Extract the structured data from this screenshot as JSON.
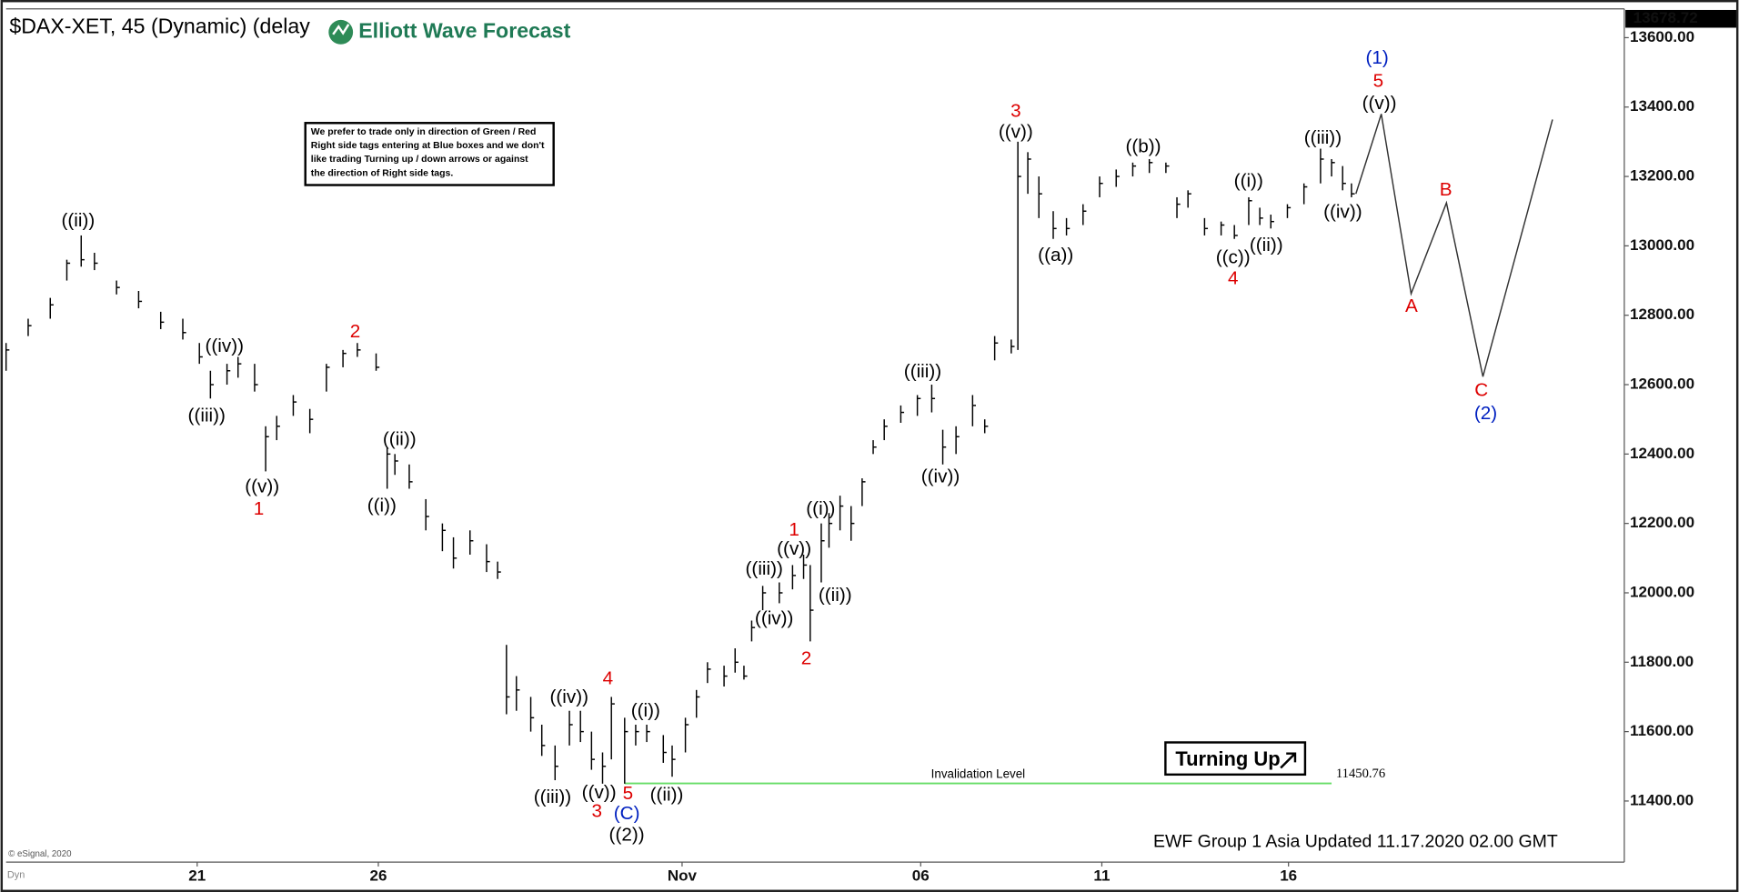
{
  "chart_data": {
    "type": "hlc",
    "title": "$DAX-XET, 45 (Dynamic) (delay",
    "logo": "Elliott Wave Forecast",
    "note": [
      "We prefer to trade only in direction of Green / Red",
      "Right side tags entering at Blue boxes and we don't",
      "like trading Turning up / down arrows or against",
      "the direction of Right side tags."
    ],
    "badge": "Turning Up",
    "footer": "EWF Group 1 Asia Updated 11.17.2020 02.00 GMT",
    "source": "© eSignal, 2020",
    "corner_label": "Dyn",
    "last_price": 13678.72,
    "color": "#000000",
    "x": [
      0,
      2,
      4,
      5.5,
      6.8,
      8,
      10,
      12,
      14,
      16,
      17.5,
      18.5,
      20,
      21,
      22.5,
      23.5,
      24.5,
      26,
      27.5,
      29,
      30.5,
      31.8,
      33.5,
      34.5,
      35.2,
      36.5,
      38,
      39.5,
      40.5,
      42,
      43.5,
      44.5,
      45.3,
      46.2,
      47.5,
      48.5,
      49.7,
      51,
      52,
      53,
      54,
      54.8,
      56,
      57,
      58,
      59.5,
      60.3,
      61.5,
      62.5,
      63.5,
      65,
      66,
      66.8,
      67.5,
      68.5,
      70,
      71.2,
      72.2,
      72.8,
      73.8,
      74.5,
      75.5,
      76.5,
      77.5,
      78.5,
      79.5,
      81,
      82.5,
      83.8,
      84.8,
      86,
      87.5,
      88.6,
      89.5,
      91,
      91.6,
      92.5,
      93.5,
      94.8,
      96,
      97.5,
      99,
      100.5,
      102,
      103.5,
      105,
      106,
      107,
      108.5,
      110,
      111.2,
      112.5,
      113.5,
      114.5,
      116,
      117.5,
      119,
      120,
      121,
      121.8
    ],
    "high": [
      12720,
      12790,
      12850,
      12960,
      13030,
      12980,
      12900,
      12870,
      12810,
      12790,
      12720,
      12640,
      12660,
      12680,
      12660,
      12480,
      12510,
      12570,
      12530,
      12660,
      12700,
      12720,
      12690,
      12420,
      12400,
      12370,
      12270,
      12200,
      12160,
      12180,
      12140,
      12090,
      11850,
      11760,
      11700,
      11620,
      11560,
      11660,
      11660,
      11600,
      11540,
      11700,
      11640,
      11620,
      11620,
      11590,
      11560,
      11640,
      11720,
      11800,
      11790,
      11840,
      11790,
      11920,
      12020,
      12030,
      12080,
      12110,
      12080,
      12200,
      12230,
      12280,
      12250,
      12330,
      12440,
      12500,
      12540,
      12570,
      12600,
      12470,
      12480,
      12570,
      12500,
      12740,
      12730,
      13300,
      13270,
      13200,
      13100,
      13080,
      13120,
      13200,
      13220,
      13240,
      13250,
      13240,
      13140,
      13160,
      13080,
      13070,
      13060,
      13140,
      13110,
      13090,
      13120,
      13180,
      13280,
      13250,
      13230,
      13180
    ],
    "low": [
      12640,
      12740,
      12790,
      12900,
      12940,
      12930,
      12860,
      12820,
      12760,
      12730,
      12660,
      12560,
      12600,
      12620,
      12580,
      12350,
      12440,
      12510,
      12460,
      12580,
      12650,
      12680,
      12640,
      12300,
      12340,
      12300,
      12180,
      12120,
      12070,
      12110,
      12060,
      12040,
      11650,
      11660,
      11600,
      11530,
      11460,
      11560,
      11570,
      11490,
      11450,
      11520,
      11450,
      11560,
      11570,
      11510,
      11470,
      11540,
      11640,
      11740,
      11730,
      11770,
      11750,
      11860,
      11950,
      11970,
      12010,
      12040,
      11860,
      12030,
      12130,
      12180,
      12150,
      12250,
      12400,
      12440,
      12490,
      12510,
      12520,
      12370,
      12400,
      12480,
      12460,
      12670,
      12690,
      12700,
      13150,
      13080,
      13020,
      13030,
      13060,
      13140,
      13170,
      13200,
      13210,
      13210,
      13080,
      13110,
      13030,
      13030,
      13020,
      13060,
      13060,
      13050,
      13080,
      13120,
      13180,
      13200,
      13160,
      13140
    ],
    "close": [
      12700,
      12770,
      12830,
      12950,
      12960,
      12950,
      12880,
      12840,
      12780,
      12750,
      12680,
      12600,
      12640,
      12660,
      12600,
      12450,
      12480,
      12550,
      12500,
      12650,
      12690,
      12700,
      12650,
      12400,
      12380,
      12320,
      12220,
      12180,
      12100,
      12150,
      12090,
      12060,
      11700,
      11720,
      11640,
      11560,
      11500,
      11620,
      11600,
      11520,
      11500,
      11680,
      11600,
      11600,
      11600,
      11540,
      11520,
      11620,
      11700,
      11780,
      11760,
      11800,
      11760,
      11900,
      12000,
      12000,
      12050,
      12080,
      11950,
      12150,
      12200,
      12250,
      12200,
      12320,
      12420,
      12480,
      12520,
      12560,
      12560,
      12420,
      12450,
      12540,
      12480,
      12720,
      12710,
      13200,
      13250,
      13150,
      13050,
      13050,
      13100,
      13180,
      13200,
      13230,
      13240,
      13230,
      13120,
      13150,
      13050,
      13060,
      13030,
      13130,
      13080,
      13070,
      13110,
      13170,
      13250,
      13240,
      13180,
      13150
    ],
    "projection": {
      "x": [
        122.2,
        124.5,
        127.2,
        130.4,
        133.7,
        140
      ],
      "values": [
        13150,
        13380,
        12862,
        13124,
        12623,
        13364
      ],
      "color": "#333333"
    },
    "invalidation": {
      "value": 11450.76,
      "label": "Invalidation Level",
      "color": "#66dd66",
      "x": [
        56,
        120
      ]
    },
    "xlim": [
      0,
      146.5
    ],
    "xticks": [
      {
        "value": 17.3,
        "label": "21"
      },
      {
        "value": 33.7,
        "label": "26"
      },
      {
        "value": 61.2,
        "label": "Nov"
      },
      {
        "value": 82.8,
        "label": "06"
      },
      {
        "value": 99.2,
        "label": "11"
      },
      {
        "value": 116.1,
        "label": "16"
      }
    ],
    "ylim": [
      11224,
      13683
    ],
    "yticks": [
      {
        "value": 11400,
        "label": "11400.00"
      },
      {
        "value": 11600,
        "label": "11600.00"
      },
      {
        "value": 11800,
        "label": "11800.00"
      },
      {
        "value": 12000,
        "label": "12000.00"
      },
      {
        "value": 12200,
        "label": "12200.00"
      },
      {
        "value": 12400,
        "label": "12400.00"
      },
      {
        "value": 12600,
        "label": "12600.00"
      },
      {
        "value": 12800,
        "label": "12800.00"
      },
      {
        "value": 13000,
        "label": "13000.00"
      },
      {
        "value": 13200,
        "label": "13200.00"
      },
      {
        "value": 13400,
        "label": "13400.00"
      },
      {
        "value": 13600,
        "label": "13600.00"
      }
    ],
    "annotations": [
      {
        "text": "((ii))",
        "color": "#000000"
      },
      {
        "text": "((iv))",
        "color": "#000000"
      },
      {
        "text": "((iii))",
        "color": "#000000"
      },
      {
        "text": "((v))",
        "color": "#000000"
      },
      {
        "text": "1",
        "color": "#dd0000"
      },
      {
        "text": "2",
        "color": "#dd0000"
      },
      {
        "text": "((ii))",
        "color": "#000000"
      },
      {
        "text": "((i))",
        "color": "#000000"
      },
      {
        "text": "((iv))",
        "color": "#000000"
      },
      {
        "text": "((iii))",
        "color": "#000000"
      },
      {
        "text": "((v))",
        "color": "#000000"
      },
      {
        "text": "4",
        "color": "#dd0000"
      },
      {
        "text": "5",
        "color": "#dd0000"
      },
      {
        "text": "3",
        "color": "#dd0000"
      },
      {
        "text": "(C)",
        "color": "#0020c0"
      },
      {
        "text": "((2))",
        "color": "#000000"
      },
      {
        "text": "((i))",
        "color": "#000000"
      },
      {
        "text": "((ii))",
        "color": "#000000"
      },
      {
        "text": "((iii))",
        "color": "#000000"
      },
      {
        "text": "((iv))",
        "color": "#000000"
      },
      {
        "text": "((v))",
        "color": "#000000"
      },
      {
        "text": "1",
        "color": "#dd0000"
      },
      {
        "text": "((i))",
        "color": "#000000"
      },
      {
        "text": "((ii))",
        "color": "#000000"
      },
      {
        "text": "2",
        "color": "#dd0000"
      },
      {
        "text": "((iii))",
        "color": "#000000"
      },
      {
        "text": "((iv))",
        "color": "#000000"
      },
      {
        "text": "3",
        "color": "#dd0000"
      },
      {
        "text": "((v))",
        "color": "#000000"
      },
      {
        "text": "((a))",
        "color": "#000000"
      },
      {
        "text": "((b))",
        "color": "#000000"
      },
      {
        "text": "((i))",
        "color": "#000000"
      },
      {
        "text": "((ii))",
        "color": "#000000"
      },
      {
        "text": "((c))",
        "color": "#000000"
      },
      {
        "text": "4",
        "color": "#dd0000"
      },
      {
        "text": "((iii))",
        "color": "#000000"
      },
      {
        "text": "((iv))",
        "color": "#000000"
      },
      {
        "text": "(1)",
        "color": "#0020c0"
      },
      {
        "text": "5",
        "color": "#dd0000"
      },
      {
        "text": "((v))",
        "color": "#000000"
      },
      {
        "text": "A",
        "color": "#dd0000"
      },
      {
        "text": "B",
        "color": "#dd0000"
      },
      {
        "text": "C",
        "color": "#dd0000"
      },
      {
        "text": "(2)",
        "color": "#0020c0"
      }
    ]
  }
}
